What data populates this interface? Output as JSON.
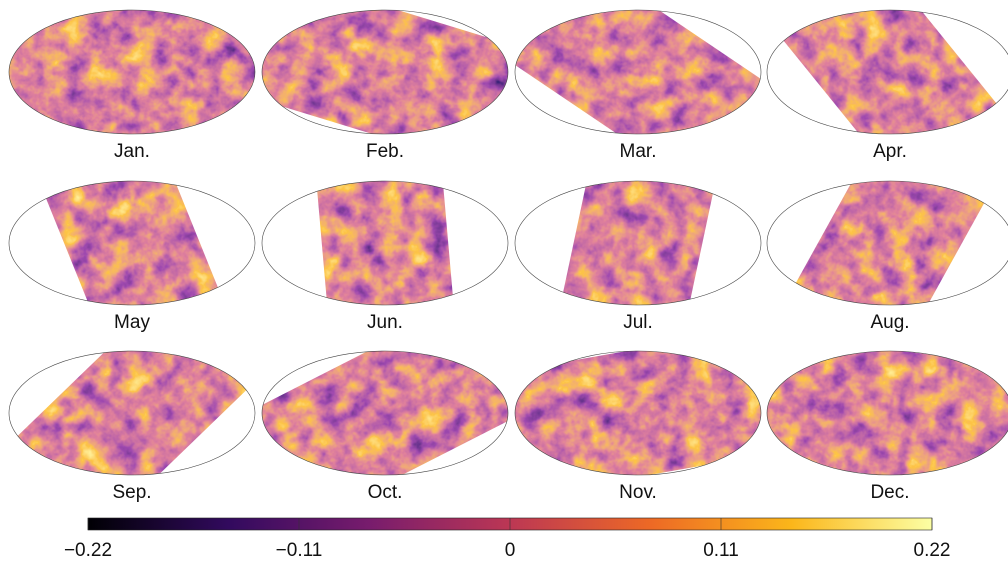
{
  "panels": [
    {
      "label": "Jan."
    },
    {
      "label": "Feb."
    },
    {
      "label": "Mar."
    },
    {
      "label": "Apr."
    },
    {
      "label": "May"
    },
    {
      "label": "Jun."
    },
    {
      "label": "Jul."
    },
    {
      "label": "Aug."
    },
    {
      "label": "Sep."
    },
    {
      "label": "Oct."
    },
    {
      "label": "Nov."
    },
    {
      "label": "Dec."
    }
  ],
  "colorbar": {
    "lim": [
      -0.22,
      0.22
    ],
    "ticks": [
      {
        "value": -0.22,
        "label": "−0.22"
      },
      {
        "value": -0.11,
        "label": "−0.11"
      },
      0,
      0.11,
      0.22
    ],
    "colors": [
      "#000004",
      "#320a5e",
      "#781c6d",
      "#bc3754",
      "#ed6925",
      "#fbb61a",
      "#fcffa4"
    ]
  }
}
